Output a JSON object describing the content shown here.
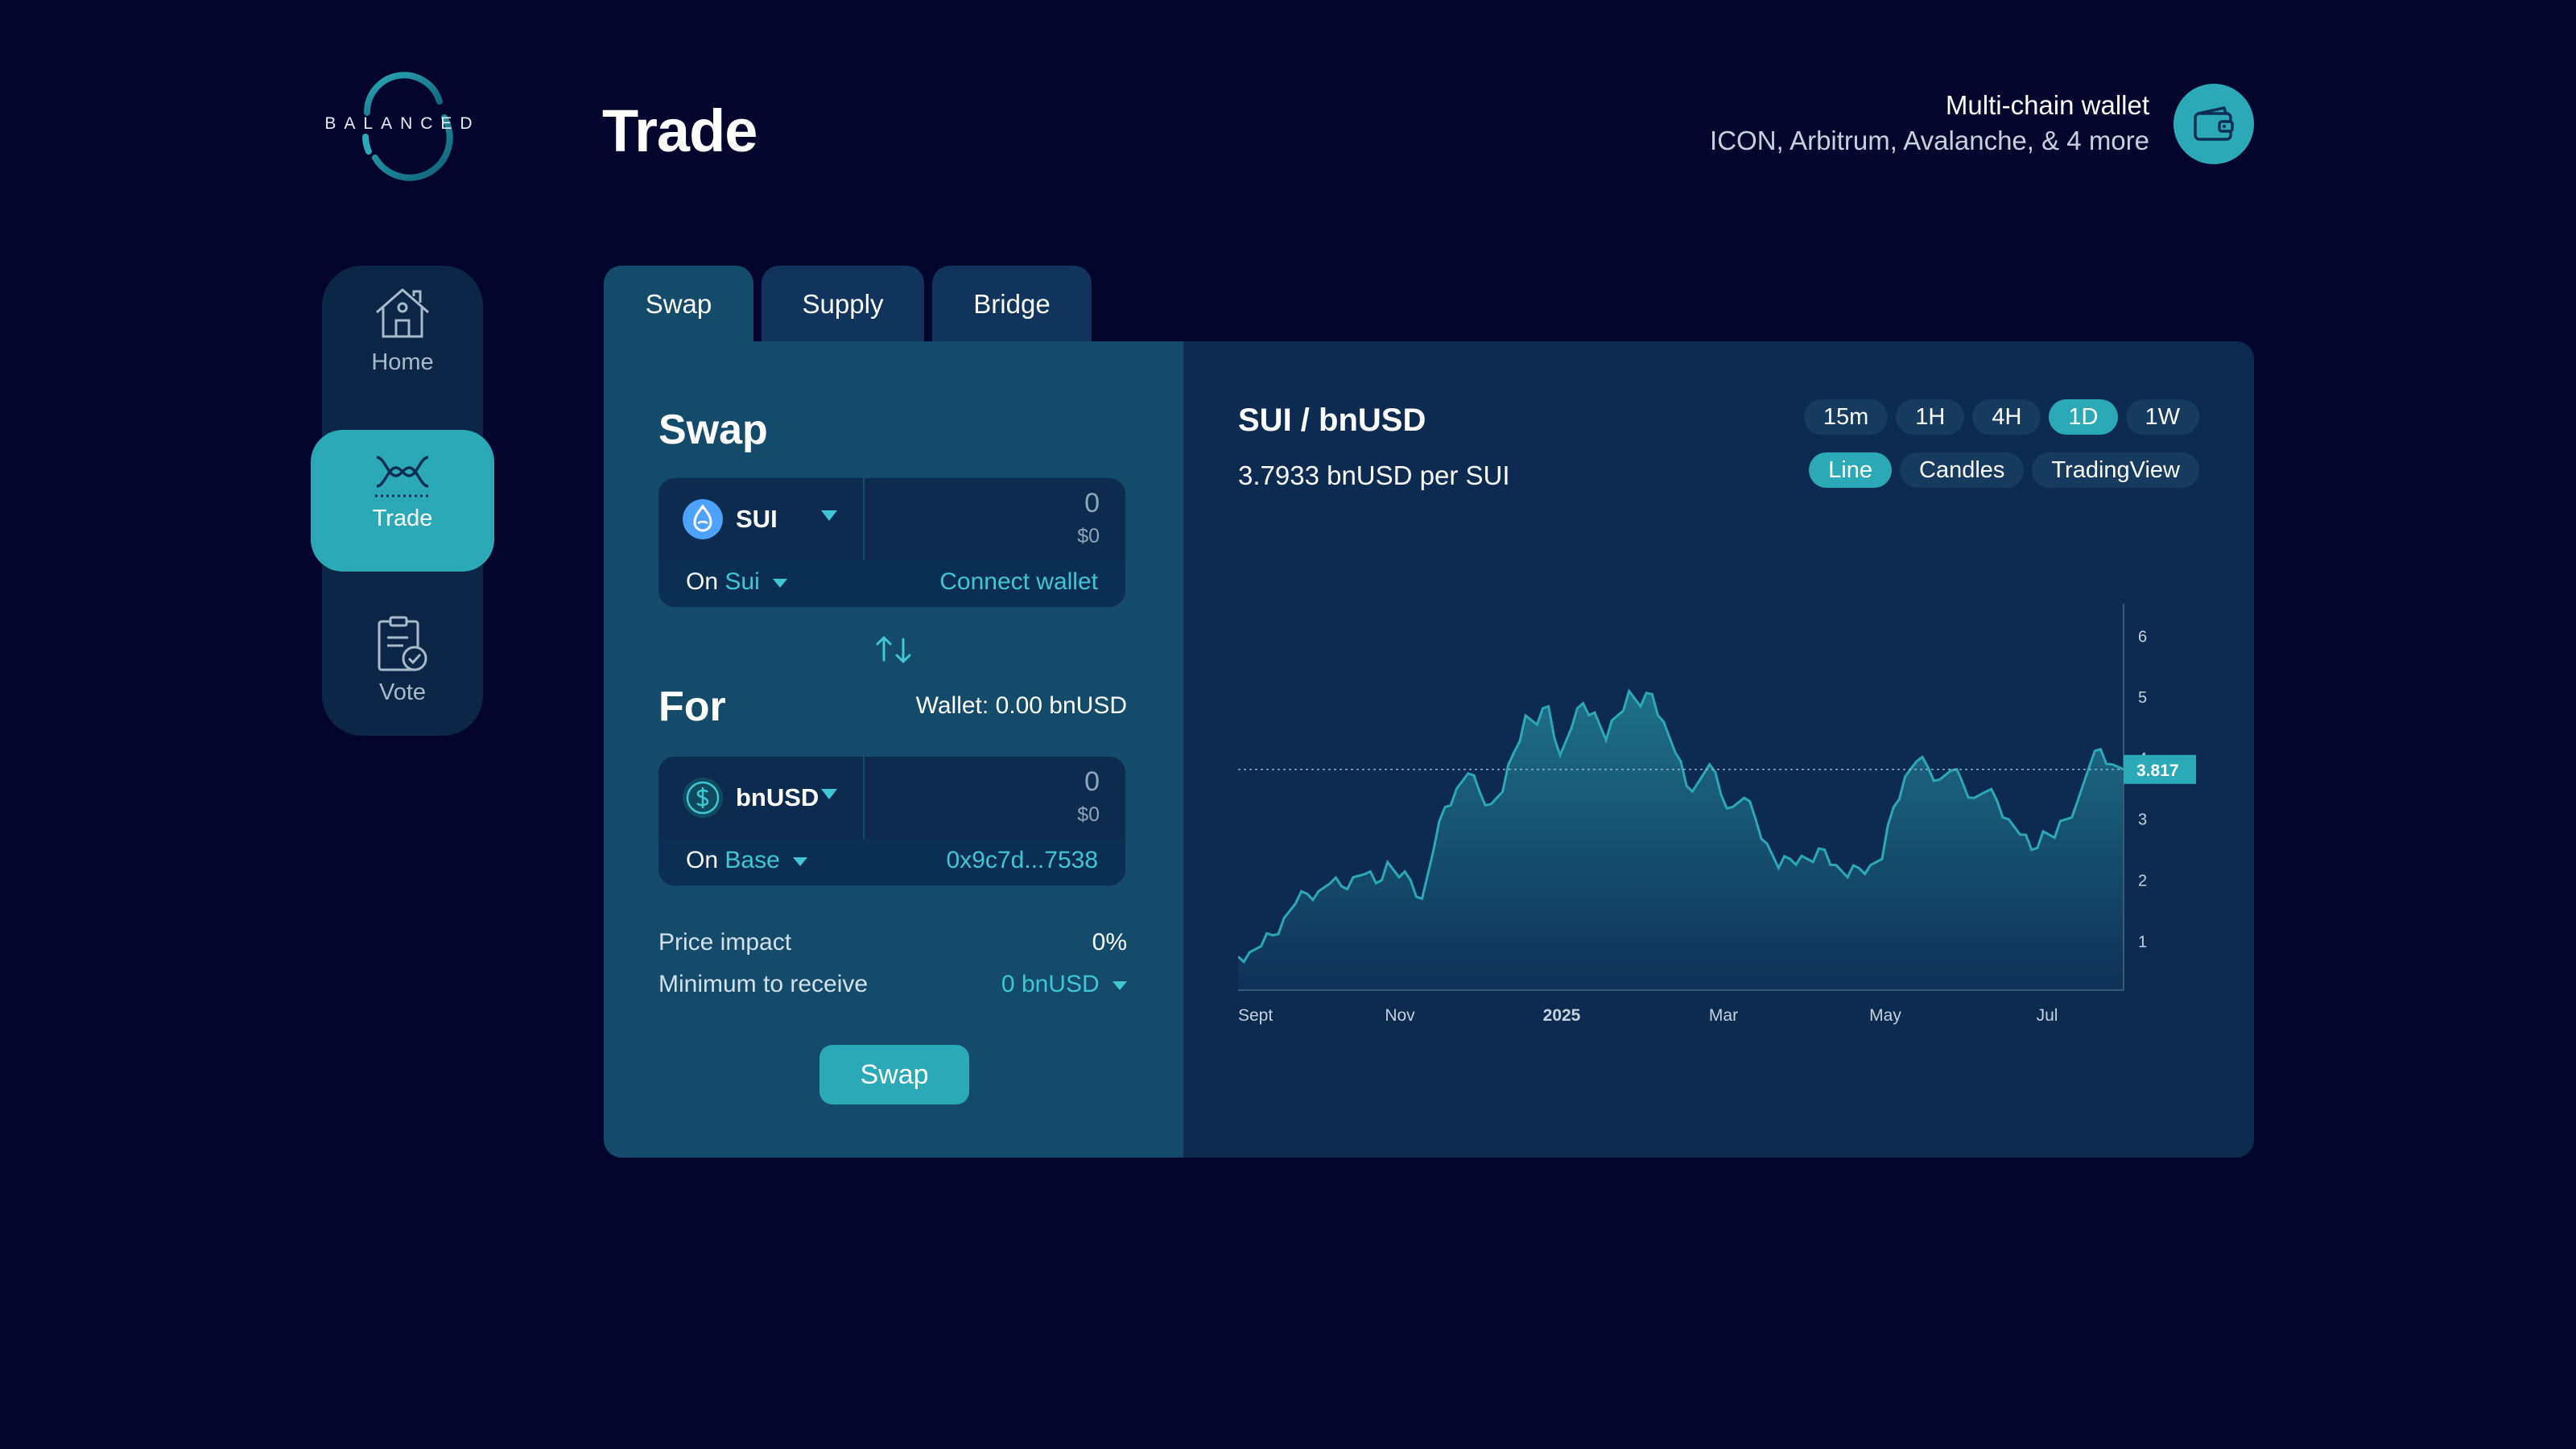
{
  "logo": {
    "text": "BALANCED"
  },
  "page_title": "Trade",
  "wallet": {
    "title": "Multi-chain wallet",
    "chains": "ICON, Arbitrum, Avalanche, & 4 more"
  },
  "sidebar": {
    "items": [
      {
        "label": "Home",
        "icon": "home-icon",
        "active": false
      },
      {
        "label": "Trade",
        "icon": "trade-icon",
        "active": true
      },
      {
        "label": "Vote",
        "icon": "vote-icon",
        "active": false
      }
    ]
  },
  "tabs": [
    {
      "label": "Swap",
      "active": true
    },
    {
      "label": "Supply",
      "active": false
    },
    {
      "label": "Bridge",
      "active": false
    }
  ],
  "swap": {
    "heading": "Swap",
    "from": {
      "token": "SUI",
      "amount": "0",
      "usd": "$0",
      "on_label": "On",
      "network": "Sui",
      "action": "Connect wallet"
    },
    "switch_icon": "swap-arrows-icon",
    "for_heading": "For",
    "wallet_balance": "Wallet: 0.00 bnUSD",
    "to": {
      "token": "bnUSD",
      "amount": "0",
      "usd": "$0",
      "on_label": "On",
      "network": "Base",
      "address": "0x9c7d...7538"
    },
    "price_impact_label": "Price impact",
    "price_impact_value": "0%",
    "min_receive_label": "Minimum to receive",
    "min_receive_value": "0 bnUSD",
    "button_label": "Swap"
  },
  "chart_panel": {
    "pair": "SUI / bnUSD",
    "price_text": "3.7933 bnUSD per SUI",
    "intervals": [
      {
        "label": "15m",
        "active": false
      },
      {
        "label": "1H",
        "active": false
      },
      {
        "label": "4H",
        "active": false
      },
      {
        "label": "1D",
        "active": true
      },
      {
        "label": "1W",
        "active": false
      }
    ],
    "chart_types": [
      {
        "label": "Line",
        "active": true
      },
      {
        "label": "Candles",
        "active": false
      },
      {
        "label": "TradingView",
        "active": false
      }
    ]
  },
  "colors": {
    "background": "#04052c",
    "panel": "#0d2b51",
    "swap_panel": "#144a6a",
    "accent": "#2ca9b7",
    "accent_text": "#3fc7d6"
  },
  "chart_data": {
    "type": "area",
    "x_tick_labels": [
      "Sept",
      "Nov",
      "2025",
      "Mar",
      "May",
      "Jul"
    ],
    "y_ticks": [
      1,
      2,
      3,
      4,
      5,
      6
    ],
    "ylim": [
      0.2,
      6.4
    ],
    "current_value_label": "3.817",
    "current_value": 3.817,
    "series": [
      {
        "values": [
          0.75,
          0.82,
          0.92,
          1.1,
          1.38,
          1.62,
          1.78,
          1.82,
          1.95,
          1.9,
          2.05,
          2.1,
          1.95,
          2.3,
          2.05,
          2.0,
          1.7,
          2.5,
          3.2,
          3.5,
          3.75,
          3.45,
          3.25,
          3.45,
          4.1,
          4.7,
          4.55,
          4.85,
          4.05,
          4.5,
          4.9,
          4.75,
          4.3,
          4.7,
          5.1,
          4.85,
          5.05,
          4.6,
          4.1,
          3.55,
          3.6,
          3.9,
          3.4,
          3.2,
          3.35,
          3.0,
          2.6,
          2.2,
          2.35,
          2.4,
          2.3,
          2.5,
          2.25,
          2.05,
          2.2,
          2.25,
          2.35,
          3.2,
          3.7,
          3.95,
          3.85,
          3.65,
          3.8,
          3.6,
          3.35,
          3.45,
          3.3,
          3.0,
          2.75,
          2.5,
          2.8,
          2.7,
          3.0,
          3.3,
          3.85,
          4.15,
          3.9,
          3.82
        ]
      }
    ]
  }
}
